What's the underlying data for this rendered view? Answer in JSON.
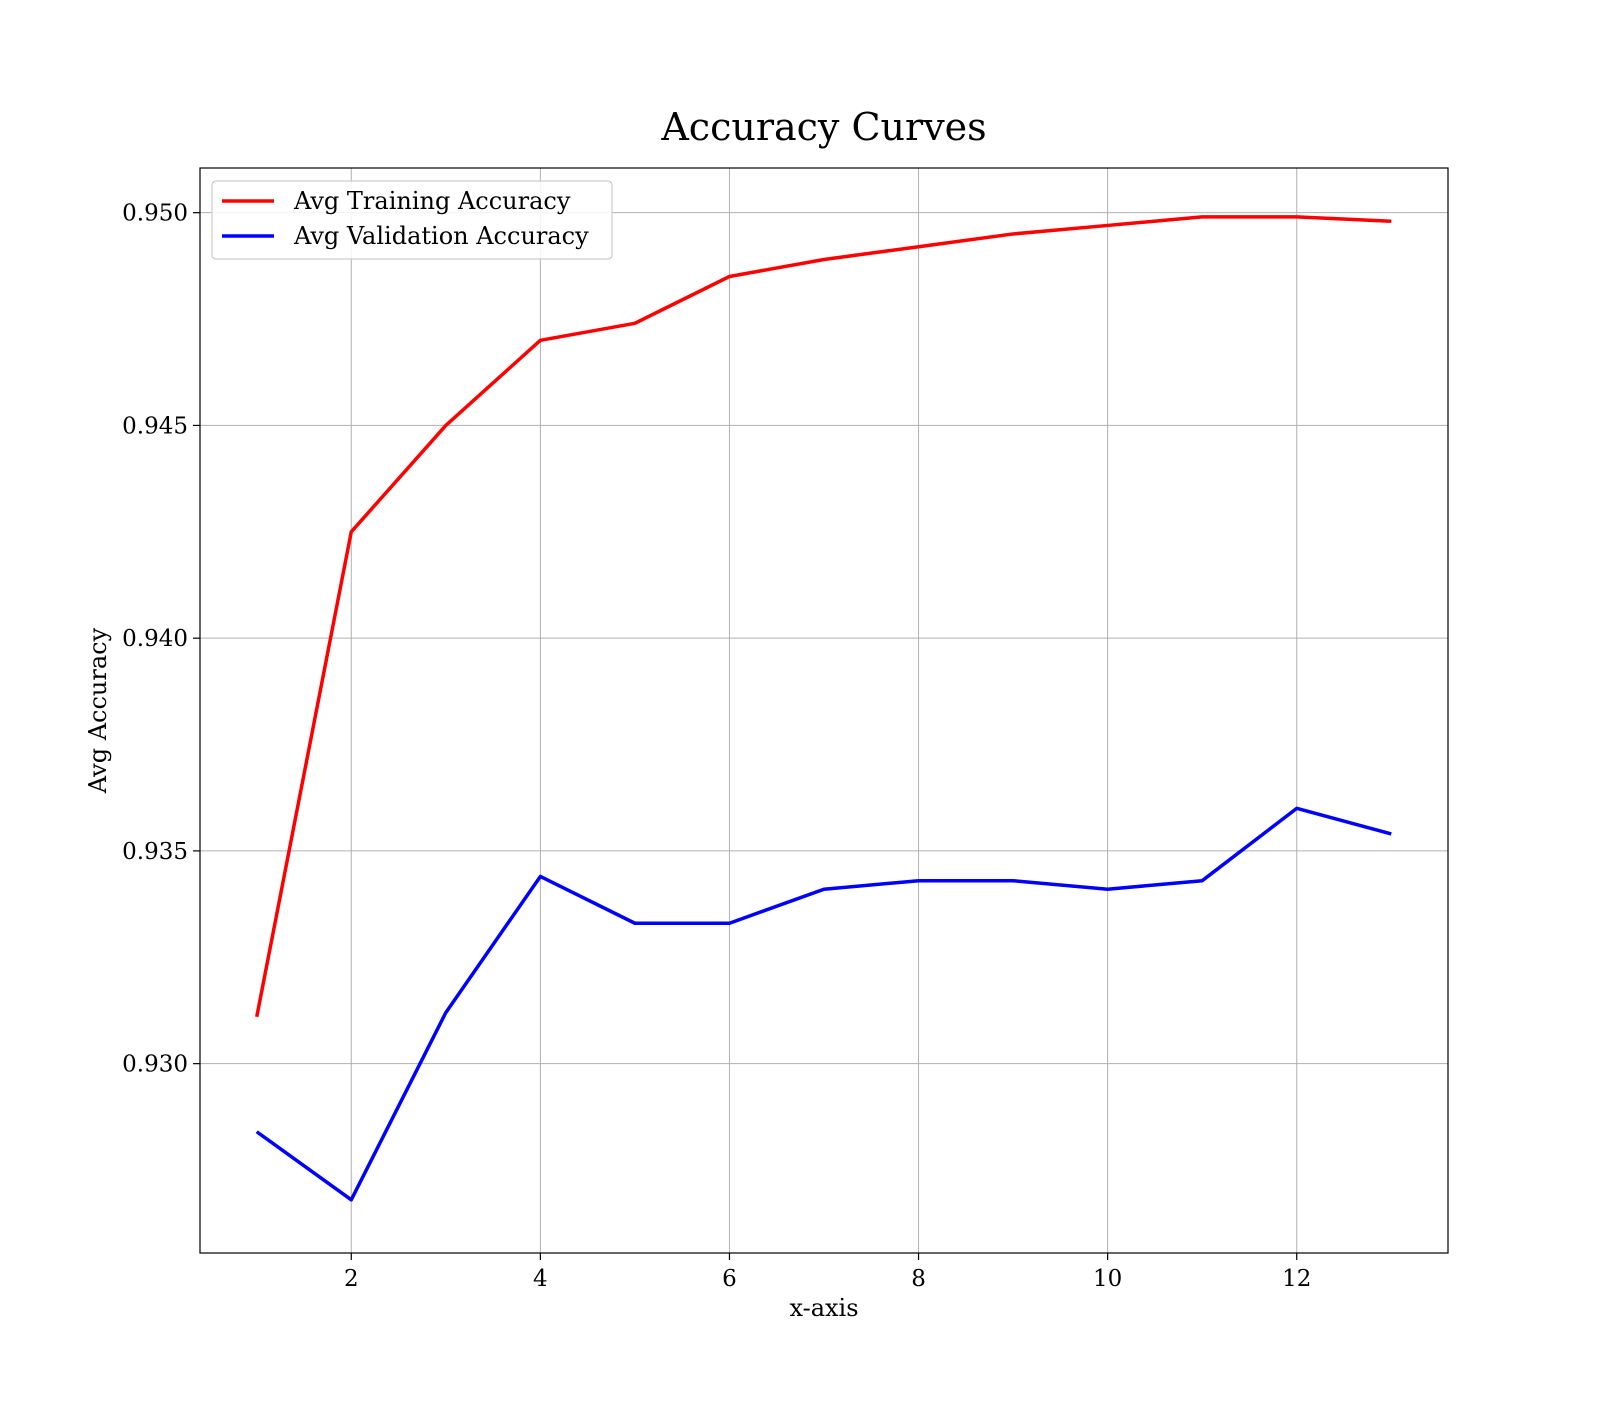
{
  "chart_data": {
    "type": "line",
    "title": "Accuracy Curves",
    "xlabel": "x-axis",
    "ylabel": "Avg Accuracy",
    "x": [
      1,
      2,
      3,
      4,
      5,
      6,
      7,
      8,
      9,
      10,
      11,
      12,
      13
    ],
    "series": [
      {
        "name": "Avg Training Accuracy",
        "color": "#ff0000",
        "values": [
          0.9311,
          0.9425,
          0.945,
          0.947,
          0.9474,
          0.9485,
          0.9489,
          0.9492,
          0.9495,
          0.9497,
          0.9499,
          0.9499,
          0.9498
        ]
      },
      {
        "name": "Avg Validation Accuracy",
        "color": "#0000ff",
        "values": [
          0.9284,
          0.9268,
          0.9312,
          0.9344,
          0.9333,
          0.9333,
          0.9341,
          0.9343,
          0.9343,
          0.9341,
          0.9343,
          0.936,
          0.9354
        ]
      }
    ],
    "xlim": [
      0.4,
      13.6
    ],
    "ylim": [
      0.92555,
      0.95105
    ],
    "xticks": [
      2,
      4,
      6,
      8,
      10,
      12
    ],
    "xtick_labels": [
      "2",
      "4",
      "6",
      "8",
      "10",
      "12"
    ],
    "yticks": [
      0.93,
      0.935,
      0.94,
      0.945,
      0.95
    ],
    "ytick_labels": [
      "0.930",
      "0.935",
      "0.940",
      "0.945",
      "0.950"
    ],
    "grid": true,
    "legend_position": "top-left"
  }
}
